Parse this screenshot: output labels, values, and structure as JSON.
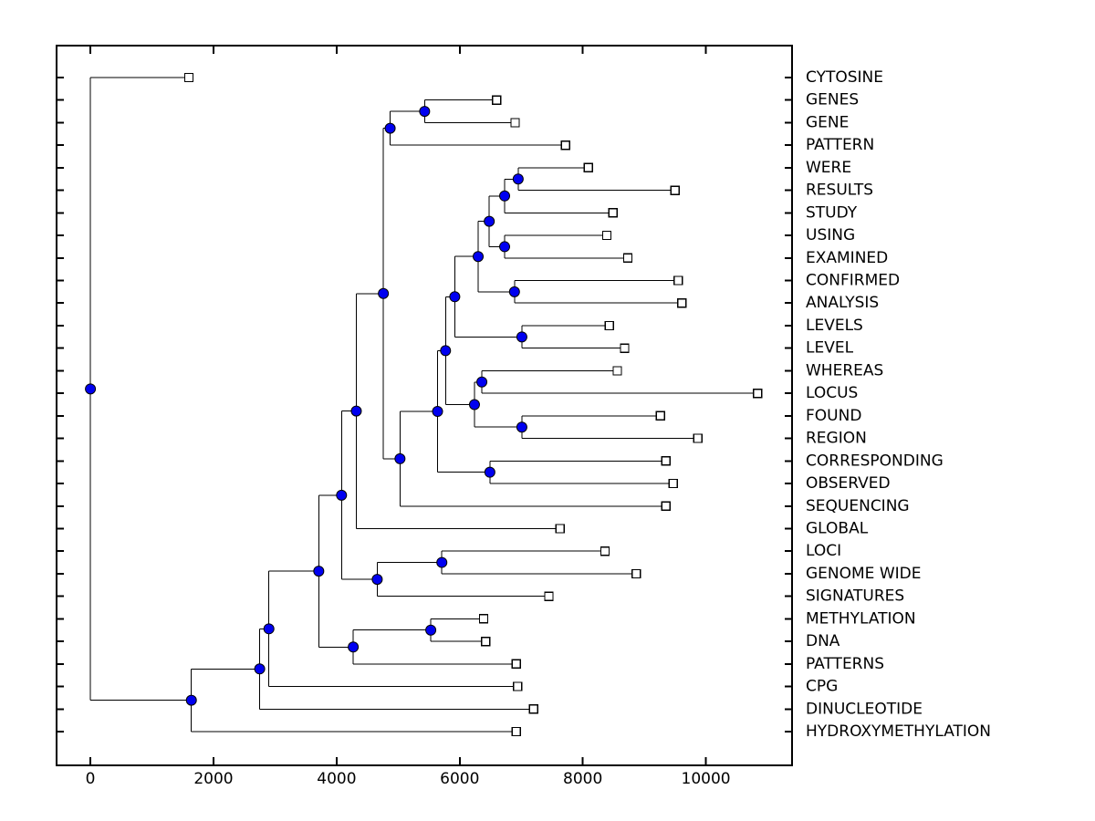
{
  "figure": {
    "background": "#ffffff",
    "title": ""
  },
  "chart_data": {
    "type": "dendrogram",
    "subtype": "phylogenetic-tree",
    "orientation": "left-to-right",
    "title": "",
    "xlabel": "",
    "ylabel": "",
    "grid": false,
    "legend": null,
    "x_axis": {
      "ticks": [
        0,
        2000,
        4000,
        6000,
        8000,
        10000
      ],
      "tick_labels": [
        "0",
        "2000",
        "4000",
        "6000",
        "8000",
        "10000"
      ],
      "lim": [
        -550,
        11400
      ]
    },
    "y_axis": {
      "leaf_count": 30,
      "labels_side": "right",
      "row_ticks_left": true,
      "row_ticks_right": true
    },
    "styles": {
      "branch_color": "#000000",
      "internal_node_color": "#0000f0",
      "internal_node_edge": "#000000",
      "leaf_marker": "open-square",
      "leaf_marker_fill": "#ffffff",
      "leaf_marker_edge": "#000000",
      "label_color": "#000000"
    },
    "leaf_order": [
      "CYTOSINE",
      "GENES",
      "GENE",
      "PATTERN",
      "WERE",
      "RESULTS",
      "STUDY",
      "USING",
      "EXAMINED",
      "CONFIRMED",
      "ANALYSIS",
      "LEVELS",
      "LEVEL",
      "WHEREAS",
      "LOCUS",
      "FOUND",
      "REGION",
      "CORRESPONDING",
      "OBSERVED",
      "SEQUENCING",
      "GLOBAL",
      "LOCI",
      "GENOME WIDE",
      "SIGNATURES",
      "METHYLATION",
      "DNA",
      "PATTERNS",
      "CPG",
      "DINUCLEOTIDE",
      "HYDROXYMETHYLATION"
    ],
    "leaves": [
      {
        "label": "CYTOSINE",
        "distance": 1600
      },
      {
        "label": "GENES",
        "distance": 6600
      },
      {
        "label": "GENE",
        "distance": 6900
      },
      {
        "label": "PATTERN",
        "distance": 7720
      },
      {
        "label": "WERE",
        "distance": 8090
      },
      {
        "label": "RESULTS",
        "distance": 9500
      },
      {
        "label": "STUDY",
        "distance": 8490
      },
      {
        "label": "USING",
        "distance": 8390
      },
      {
        "label": "EXAMINED",
        "distance": 8730
      },
      {
        "label": "CONFIRMED",
        "distance": 9550
      },
      {
        "label": "ANALYSIS",
        "distance": 9610
      },
      {
        "label": "LEVELS",
        "distance": 8430
      },
      {
        "label": "LEVEL",
        "distance": 8680
      },
      {
        "label": "WHEREAS",
        "distance": 8560
      },
      {
        "label": "LOCUS",
        "distance": 10840
      },
      {
        "label": "FOUND",
        "distance": 9260
      },
      {
        "label": "REGION",
        "distance": 9870
      },
      {
        "label": "CORRESPONDING",
        "distance": 9350
      },
      {
        "label": "OBSERVED",
        "distance": 9470
      },
      {
        "label": "SEQUENCING",
        "distance": 9350
      },
      {
        "label": "GLOBAL",
        "distance": 7630
      },
      {
        "label": "LOCI",
        "distance": 8360
      },
      {
        "label": "GENOME WIDE",
        "distance": 8870
      },
      {
        "label": "SIGNATURES",
        "distance": 7450
      },
      {
        "label": "METHYLATION",
        "distance": 6390
      },
      {
        "label": "DNA",
        "distance": 6420
      },
      {
        "label": "PATTERNS",
        "distance": 6920
      },
      {
        "label": "CPG",
        "distance": 6940
      },
      {
        "label": "DINUCLEOTIDE",
        "distance": 7200
      },
      {
        "label": "HYDROXYMETHYLATION",
        "distance": 6920
      }
    ],
    "tree": {
      "d": 0,
      "c": [
        {
          "leaf": "CYTOSINE",
          "d": 1600
        },
        {
          "d": 1640,
          "c": [
            {
              "d": 2750,
              "c": [
                {
                  "d": 2900,
                  "c": [
                    {
                      "d": 3710,
                      "c": [
                        {
                          "d": 4080,
                          "c": [
                            {
                              "d": 4320,
                              "c": [
                                {
                                  "d": 4760,
                                  "c": [
                                    {
                                      "d": 4870,
                                      "c": [
                                        {
                                          "d": 5430,
                                          "c": [
                                            {
                                              "leaf": "GENES",
                                              "d": 6600
                                            },
                                            {
                                              "leaf": "GENE",
                                              "d": 6900
                                            }
                                          ]
                                        },
                                        {
                                          "leaf": "PATTERN",
                                          "d": 7720
                                        }
                                      ]
                                    },
                                    {
                                      "d": 5030,
                                      "c": [
                                        {
                                          "d": 5640,
                                          "c": [
                                            {
                                              "d": 5770,
                                              "c": [
                                                {
                                                  "d": 5920,
                                                  "c": [
                                                    {
                                                      "d": 6300,
                                                      "c": [
                                                        {
                                                          "d": 6480,
                                                          "c": [
                                                            {
                                                              "d": 6730,
                                                              "c": [
                                                                {
                                                                  "d": 6950,
                                                                  "c": [
                                                                    {
                                                                      "leaf": "WERE",
                                                                      "d": 8090
                                                                    },
                                                                    {
                                                                      "leaf": "RESULTS",
                                                                      "d": 9500
                                                                    }
                                                                  ]
                                                                },
                                                                {
                                                                  "leaf": "STUDY",
                                                                  "d": 8490
                                                                }
                                                              ]
                                                            },
                                                            {
                                                              "d": 6730,
                                                              "c": [
                                                                {
                                                                  "leaf": "USING",
                                                                  "d": 8390
                                                                },
                                                                {
                                                                  "leaf": "EXAMINED",
                                                                  "d": 8730
                                                                }
                                                              ]
                                                            }
                                                          ]
                                                        },
                                                        {
                                                          "d": 6890,
                                                          "c": [
                                                            {
                                                              "leaf": "CONFIRMED",
                                                              "d": 9550
                                                            },
                                                            {
                                                              "leaf": "ANALYSIS",
                                                              "d": 9610
                                                            }
                                                          ]
                                                        }
                                                      ]
                                                    },
                                                    {
                                                      "d": 7010,
                                                      "c": [
                                                        {
                                                          "leaf": "LEVELS",
                                                          "d": 8430
                                                        },
                                                        {
                                                          "leaf": "LEVEL",
                                                          "d": 8680
                                                        }
                                                      ]
                                                    }
                                                  ]
                                                },
                                                {
                                                  "d": 6240,
                                                  "c": [
                                                    {
                                                      "d": 6360,
                                                      "c": [
                                                        {
                                                          "leaf": "WHEREAS",
                                                          "d": 8560
                                                        },
                                                        {
                                                          "leaf": "LOCUS",
                                                          "d": 10840
                                                        }
                                                      ]
                                                    },
                                                    {
                                                      "d": 7010,
                                                      "c": [
                                                        {
                                                          "leaf": "FOUND",
                                                          "d": 9260
                                                        },
                                                        {
                                                          "leaf": "REGION",
                                                          "d": 9870
                                                        }
                                                      ]
                                                    }
                                                  ]
                                                }
                                              ]
                                            },
                                            {
                                              "d": 6490,
                                              "c": [
                                                {
                                                  "leaf": "CORRESPONDING",
                                                  "d": 9350
                                                },
                                                {
                                                  "leaf": "OBSERVED",
                                                  "d": 9470
                                                }
                                              ]
                                            }
                                          ]
                                        },
                                        {
                                          "leaf": "SEQUENCING",
                                          "d": 9350
                                        }
                                      ]
                                    }
                                  ]
                                },
                                {
                                  "leaf": "GLOBAL",
                                  "d": 7630
                                }
                              ]
                            },
                            {
                              "d": 4660,
                              "c": [
                                {
                                  "d": 5710,
                                  "c": [
                                    {
                                      "leaf": "LOCI",
                                      "d": 8360
                                    },
                                    {
                                      "leaf": "GENOME WIDE",
                                      "d": 8870
                                    }
                                  ]
                                },
                                {
                                  "leaf": "SIGNATURES",
                                  "d": 7450
                                }
                              ]
                            }
                          ]
                        },
                        {
                          "d": 4270,
                          "c": [
                            {
                              "d": 5530,
                              "c": [
                                {
                                  "leaf": "METHYLATION",
                                  "d": 6390
                                },
                                {
                                  "leaf": "DNA",
                                  "d": 6420
                                }
                              ]
                            },
                            {
                              "leaf": "PATTERNS",
                              "d": 6920
                            }
                          ]
                        }
                      ]
                    },
                    {
                      "leaf": "CPG",
                      "d": 6940
                    }
                  ]
                },
                {
                  "leaf": "DINUCLEOTIDE",
                  "d": 7200
                }
              ]
            },
            {
              "leaf": "HYDROXYMETHYLATION",
              "d": 6920
            }
          ]
        }
      ]
    }
  }
}
